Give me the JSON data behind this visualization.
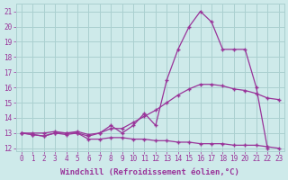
{
  "xlabel": "Windchill (Refroidissement éolien,°C)",
  "bg_color": "#ceeaea",
  "grid_color": "#aad0d0",
  "line_color": "#993399",
  "x": [
    0,
    1,
    2,
    3,
    4,
    5,
    6,
    7,
    8,
    9,
    10,
    11,
    12,
    13,
    14,
    15,
    16,
    17,
    18,
    19,
    20,
    21,
    22,
    23
  ],
  "line_upper": [
    13.0,
    13.0,
    13.0,
    13.1,
    13.0,
    13.1,
    12.9,
    13.0,
    13.3,
    13.3,
    13.7,
    14.1,
    14.5,
    15.0,
    15.5,
    15.9,
    16.2,
    16.2,
    16.1,
    15.9,
    15.8,
    15.6,
    15.3,
    15.2
  ],
  "line_peak": [
    13.0,
    12.9,
    12.8,
    13.0,
    13.0,
    13.0,
    12.8,
    13.0,
    13.5,
    13.0,
    13.5,
    14.3,
    13.5,
    16.5,
    18.5,
    20.0,
    21.0,
    20.3,
    18.5,
    18.5,
    18.5,
    16.0,
    12.0,
    null
  ],
  "line_lower": [
    13.0,
    12.9,
    12.8,
    13.0,
    12.9,
    13.0,
    12.6,
    12.6,
    12.7,
    12.7,
    12.6,
    12.6,
    12.5,
    12.5,
    12.4,
    12.4,
    12.3,
    12.3,
    12.3,
    12.2,
    12.2,
    12.2,
    12.1,
    12.0
  ],
  "ylim": [
    11.8,
    21.5
  ],
  "yticks": [
    12,
    13,
    14,
    15,
    16,
    17,
    18,
    19,
    20,
    21
  ],
  "xticks": [
    0,
    1,
    2,
    3,
    4,
    5,
    6,
    7,
    8,
    9,
    10,
    11,
    12,
    13,
    14,
    15,
    16,
    17,
    18,
    19,
    20,
    21,
    22,
    23
  ],
  "font_color": "#993399",
  "tick_fontsize": 5.5,
  "label_fontsize": 6.5
}
